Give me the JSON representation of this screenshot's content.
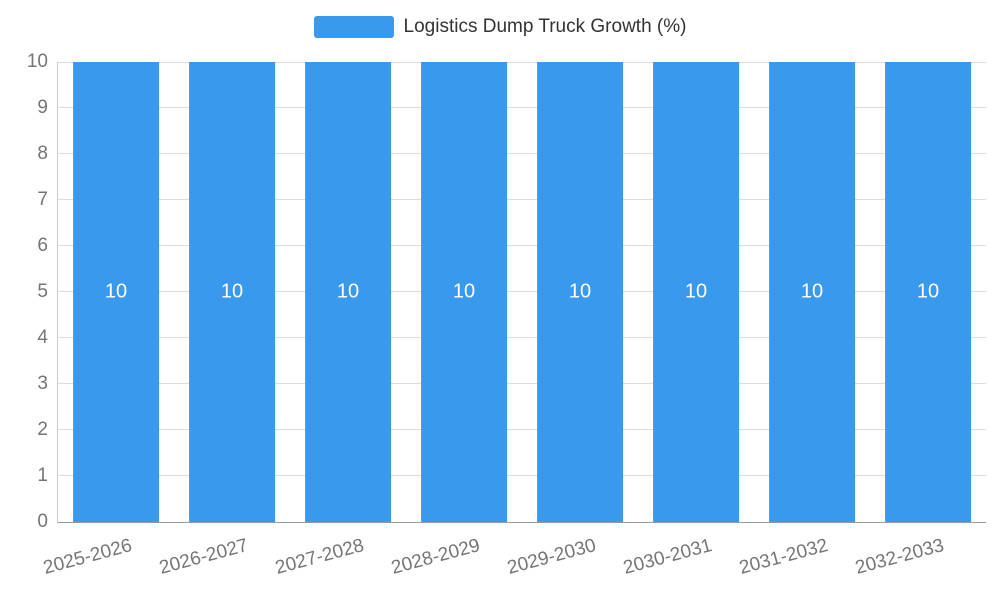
{
  "chart_data": {
    "type": "bar",
    "title": "Logistics Dump Truck Growth (%)",
    "categories": [
      "2025-2026",
      "2026-2027",
      "2027-2028",
      "2028-2029",
      "2029-2030",
      "2030-2031",
      "2031-2032",
      "2032-2033"
    ],
    "values": [
      10,
      10,
      10,
      10,
      10,
      10,
      10,
      10
    ],
    "xlabel": "",
    "ylabel": "",
    "ylim": [
      0,
      10
    ],
    "yticks": [
      0,
      1,
      2,
      3,
      4,
      5,
      6,
      7,
      8,
      9,
      10
    ],
    "grid": true,
    "legend_position": "top-center",
    "colors": {
      "bar_color": "#3999ec",
      "value_label_color": "#ffffff",
      "tick_label_color": "#757575",
      "legend_text_color": "#333333",
      "grid_color": "#dddddd",
      "axis_line_color": "#999999",
      "background": "#ffffff"
    }
  }
}
